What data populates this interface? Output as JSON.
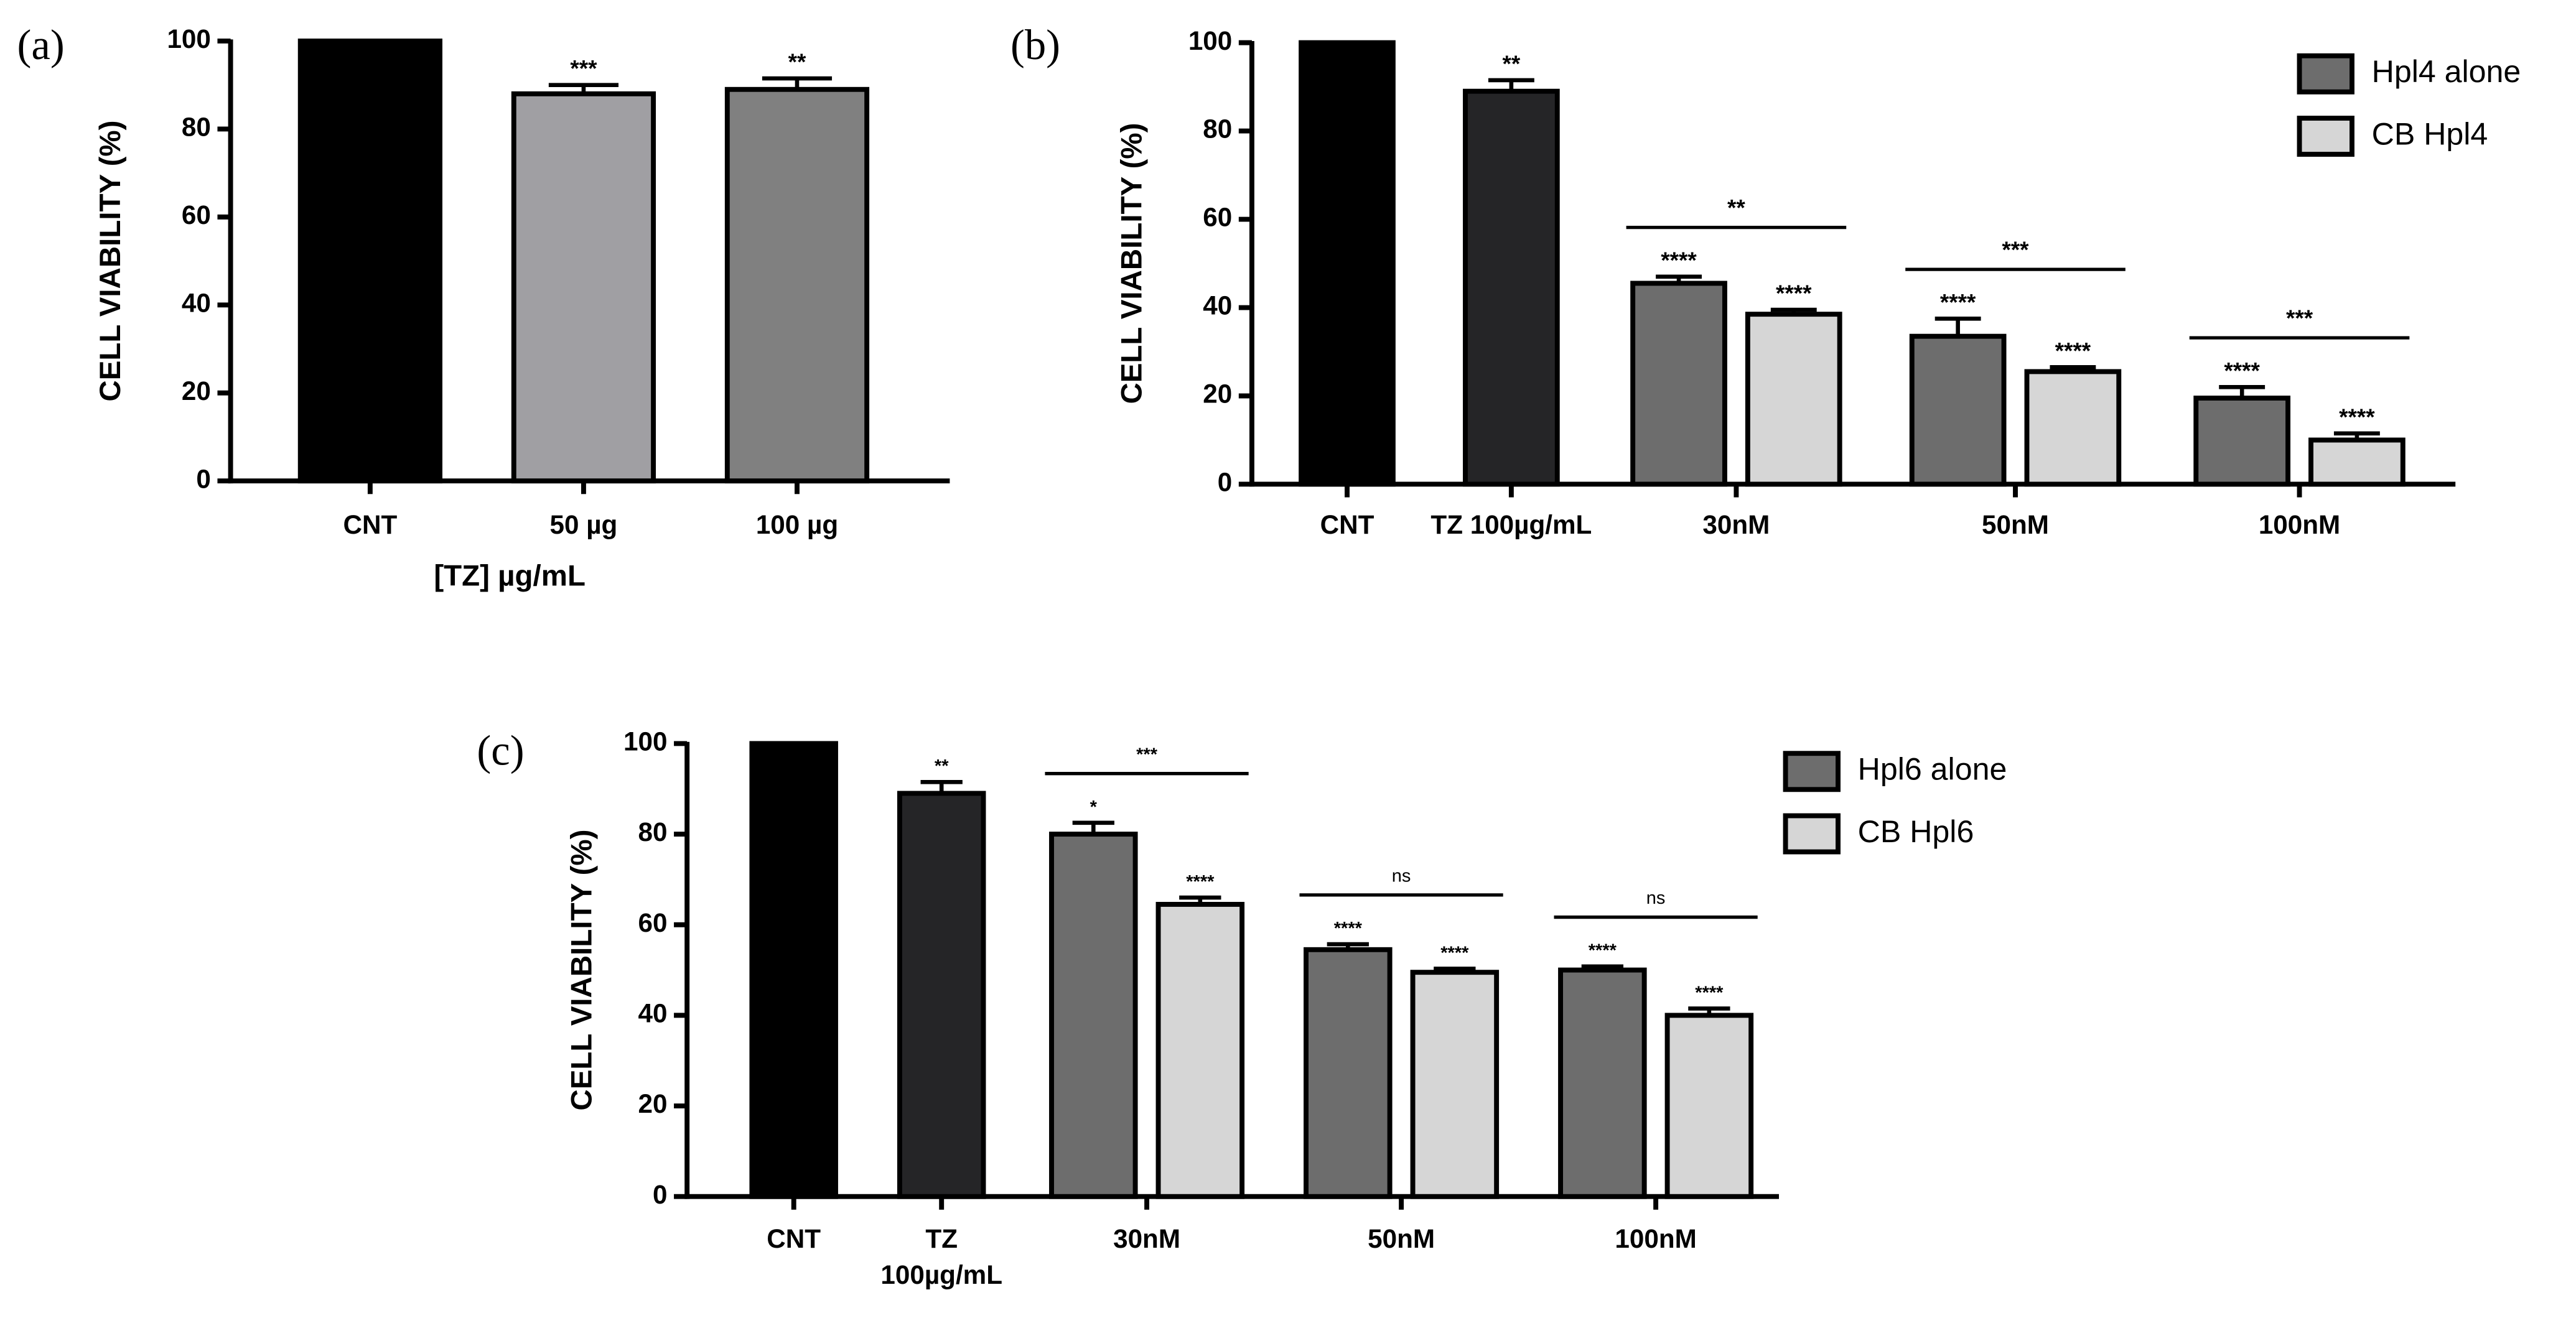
{
  "chart_data": [
    {
      "type": "bar",
      "panel": "(a)",
      "ylabel": "CELL VIABILITY (%)",
      "xlabel": "[TZ] µg/mL",
      "categories": [
        "CNT",
        "50 µg",
        "100 µg"
      ],
      "single": {
        "values": [
          100,
          88,
          89
        ],
        "errors": [
          null,
          2,
          2.5
        ],
        "colors": [
          "#000000",
          "#a09fa3",
          "#808080"
        ],
        "significance": [
          null,
          "***",
          "**"
        ]
      },
      "ylim": [
        0,
        100
      ],
      "yticks": [
        0,
        20,
        40,
        60,
        80,
        100
      ]
    },
    {
      "type": "grouped_bar",
      "panel": "(b)",
      "ylabel": "CELL VIABILITY (%)",
      "categories": [
        "CNT",
        "TZ 100µg/mL",
        "30nM",
        "50nM",
        "100nM"
      ],
      "single": {
        "values": [
          100,
          89,
          null,
          null,
          null
        ],
        "errors": [
          null,
          2.5,
          null,
          null,
          null
        ],
        "colors": [
          "#000000",
          "#252527",
          null,
          null,
          null
        ],
        "significance": [
          null,
          "**",
          null,
          null,
          null
        ]
      },
      "series": [
        {
          "name": "Hpl4 alone",
          "color": "#6d6d6d",
          "values": [
            null,
            null,
            45.5,
            33.5,
            19.5
          ],
          "errors": [
            null,
            null,
            1.5,
            4,
            2.5
          ],
          "significance": [
            null,
            null,
            "****",
            "****",
            "****"
          ]
        },
        {
          "name": "CB Hpl4",
          "color": "#d6d6d6",
          "values": [
            null,
            null,
            38.5,
            25.5,
            10
          ],
          "errors": [
            null,
            null,
            1,
            1,
            1.5
          ],
          "significance": [
            null,
            null,
            "****",
            "****",
            "****"
          ]
        }
      ],
      "group_significance": [
        null,
        null,
        "**",
        "***",
        "***"
      ],
      "ylim": [
        0,
        100
      ],
      "yticks": [
        0,
        20,
        40,
        60,
        80,
        100
      ]
    },
    {
      "type": "grouped_bar",
      "panel": "(c)",
      "ylabel": "CELL VIABILITY (%)",
      "categories": [
        "CNT",
        [
          "TZ",
          "100µg/mL"
        ],
        "30nM",
        "50nM",
        "100nM"
      ],
      "single": {
        "values": [
          100,
          89,
          null,
          null,
          null
        ],
        "errors": [
          null,
          2.5,
          null,
          null,
          null
        ],
        "colors": [
          "#000000",
          "#252527",
          null,
          null,
          null
        ],
        "significance": [
          null,
          "**",
          null,
          null,
          null
        ]
      },
      "series": [
        {
          "name": "Hpl6 alone",
          "color": "#6d6d6d",
          "values": [
            null,
            null,
            80,
            54.5,
            50
          ],
          "errors": [
            null,
            null,
            2.5,
            1.2,
            0.8
          ],
          "significance": [
            null,
            null,
            "*",
            "****",
            "****"
          ]
        },
        {
          "name": "CB Hpl6",
          "color": "#d6d6d6",
          "values": [
            null,
            null,
            64.5,
            49.5,
            40
          ],
          "errors": [
            null,
            null,
            1.5,
            0.8,
            1.5
          ],
          "significance": [
            null,
            null,
            "****",
            "****",
            "****"
          ]
        }
      ],
      "group_significance": [
        null,
        null,
        "***",
        "ns",
        "ns"
      ],
      "ylim": [
        0,
        100
      ],
      "yticks": [
        0,
        20,
        40,
        60,
        80,
        100
      ]
    }
  ]
}
